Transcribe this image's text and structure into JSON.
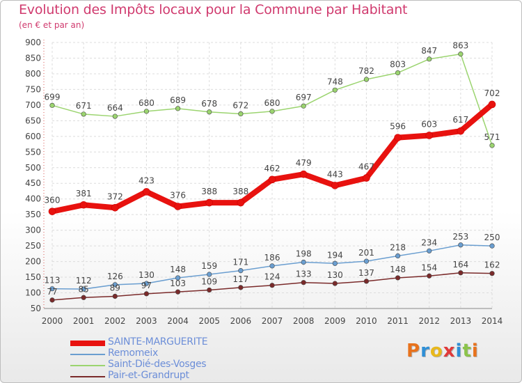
{
  "header": {
    "title": "Evolution des Impôts locaux pour la Commune par Habitant",
    "subtitle": "(en € et par an)"
  },
  "logo": {
    "text": "Proxiti",
    "colors": [
      "#e8721c",
      "#2f8fd6",
      "#e8b81c",
      "#e03a3a",
      "#2f8fd6",
      "#8bc34a",
      "#e8721c"
    ]
  },
  "chart_data": {
    "type": "line",
    "title": "Evolution des Impôts locaux pour la Commune par Habitant",
    "subtitle": "(en € et par an)",
    "x": [
      "2000",
      "2001",
      "2002",
      "2003",
      "2004",
      "2005",
      "2006",
      "2007",
      "2008",
      "2009",
      "2010",
      "2011",
      "2012",
      "2013",
      "2014"
    ],
    "y_ticks": [
      50,
      100,
      150,
      200,
      250,
      300,
      350,
      400,
      450,
      500,
      550,
      600,
      650,
      700,
      750,
      800,
      850,
      900
    ],
    "ylim": [
      50,
      900
    ],
    "grid": true,
    "legend_position": "bottom-left",
    "series": [
      {
        "name": "SAINTE-MARGUERITE",
        "color": "#e8120f",
        "width": 8,
        "values": [
          360,
          381,
          372,
          423,
          376,
          388,
          388,
          462,
          479,
          443,
          467,
          596,
          603,
          617,
          702
        ]
      },
      {
        "name": "Remomeix",
        "color": "#6a9ed0",
        "width": 1.5,
        "values": [
          113,
          112,
          126,
          130,
          148,
          159,
          171,
          186,
          198,
          194,
          201,
          218,
          234,
          253,
          250
        ]
      },
      {
        "name": "Saint-Dié-des-Vosges",
        "color": "#9bd46f",
        "width": 1.5,
        "values": [
          699,
          671,
          664,
          680,
          689,
          678,
          672,
          680,
          697,
          748,
          782,
          803,
          847,
          863,
          571
        ]
      },
      {
        "name": "Pair-et-Grandrupt",
        "color": "#7a2a2a",
        "width": 1.5,
        "values": [
          77,
          85,
          89,
          97,
          103,
          109,
          117,
          124,
          133,
          130,
          137,
          148,
          154,
          164,
          162
        ]
      }
    ],
    "value_labels": {
      "SAINTE-MARGUERITE": [
        "360",
        "381",
        "372",
        "423",
        "376",
        "388",
        "388",
        "462",
        "479",
        "443",
        "467",
        "596",
        "603",
        "617",
        "702"
      ],
      "Remomeix": [
        "113",
        "112",
        "126",
        "130",
        "148",
        "159",
        "171",
        "186",
        "198",
        "194",
        "201",
        "218",
        "234",
        "253",
        "250"
      ],
      "Saint-Dié-des-Vosges": [
        "699",
        "671",
        "664",
        "680",
        "689",
        "678",
        "672",
        "680",
        "697",
        "748",
        "782",
        "803",
        "847",
        "863",
        "571"
      ],
      "Pair-et-Grandrupt": [
        "77",
        "85",
        "89",
        "97",
        "103",
        "109",
        "117",
        "124",
        "133",
        "130",
        "137",
        "148",
        "154",
        "164",
        "162"
      ]
    }
  }
}
